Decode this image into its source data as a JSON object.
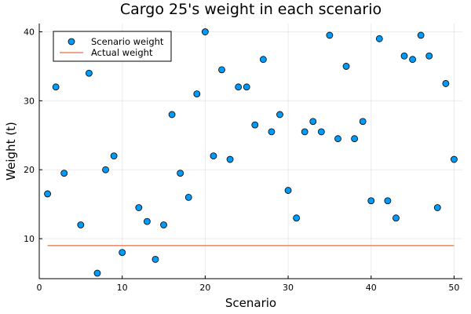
{
  "chart_data": {
    "type": "scatter",
    "title": "Cargo 25's weight in each scenario",
    "xlabel": "Scenario",
    "ylabel": "Weight (t)",
    "xlim": [
      0,
      51
    ],
    "ylim": [
      4.2,
      41.2
    ],
    "xticks": [
      0,
      10,
      20,
      30,
      40,
      50
    ],
    "yticks": [
      10,
      20,
      30,
      40
    ],
    "grid": true,
    "legend_position": "top-left",
    "series": [
      {
        "name": "Scenario weight",
        "kind": "scatter",
        "color": "#009AF9",
        "x": [
          1,
          2,
          3,
          5,
          6,
          7,
          8,
          9,
          10,
          12,
          13,
          14,
          15,
          16,
          17,
          18,
          19,
          20,
          21,
          22,
          23,
          24,
          25,
          26,
          27,
          28,
          29,
          30,
          31,
          32,
          33,
          34,
          35,
          36,
          37,
          38,
          39,
          40,
          41,
          42,
          43,
          44,
          45,
          46,
          47,
          48,
          49,
          50
        ],
        "y": [
          16.5,
          32,
          19.5,
          12,
          34,
          5,
          20,
          22,
          8,
          14.5,
          12.5,
          7,
          12,
          28,
          19.5,
          16,
          31,
          40,
          22,
          34.5,
          21.5,
          32,
          32,
          26.5,
          36,
          25.5,
          28,
          17,
          13,
          25.5,
          27,
          25.5,
          39.5,
          24.5,
          35,
          24.5,
          27,
          15.5,
          39,
          15.5,
          13,
          36.5,
          36,
          39.5,
          36.5,
          14.5,
          32.5,
          21.5
        ]
      },
      {
        "name": "Actual weight",
        "kind": "line",
        "color": "#E26F46",
        "x": [
          1,
          50
        ],
        "y": [
          9,
          9
        ]
      }
    ]
  }
}
